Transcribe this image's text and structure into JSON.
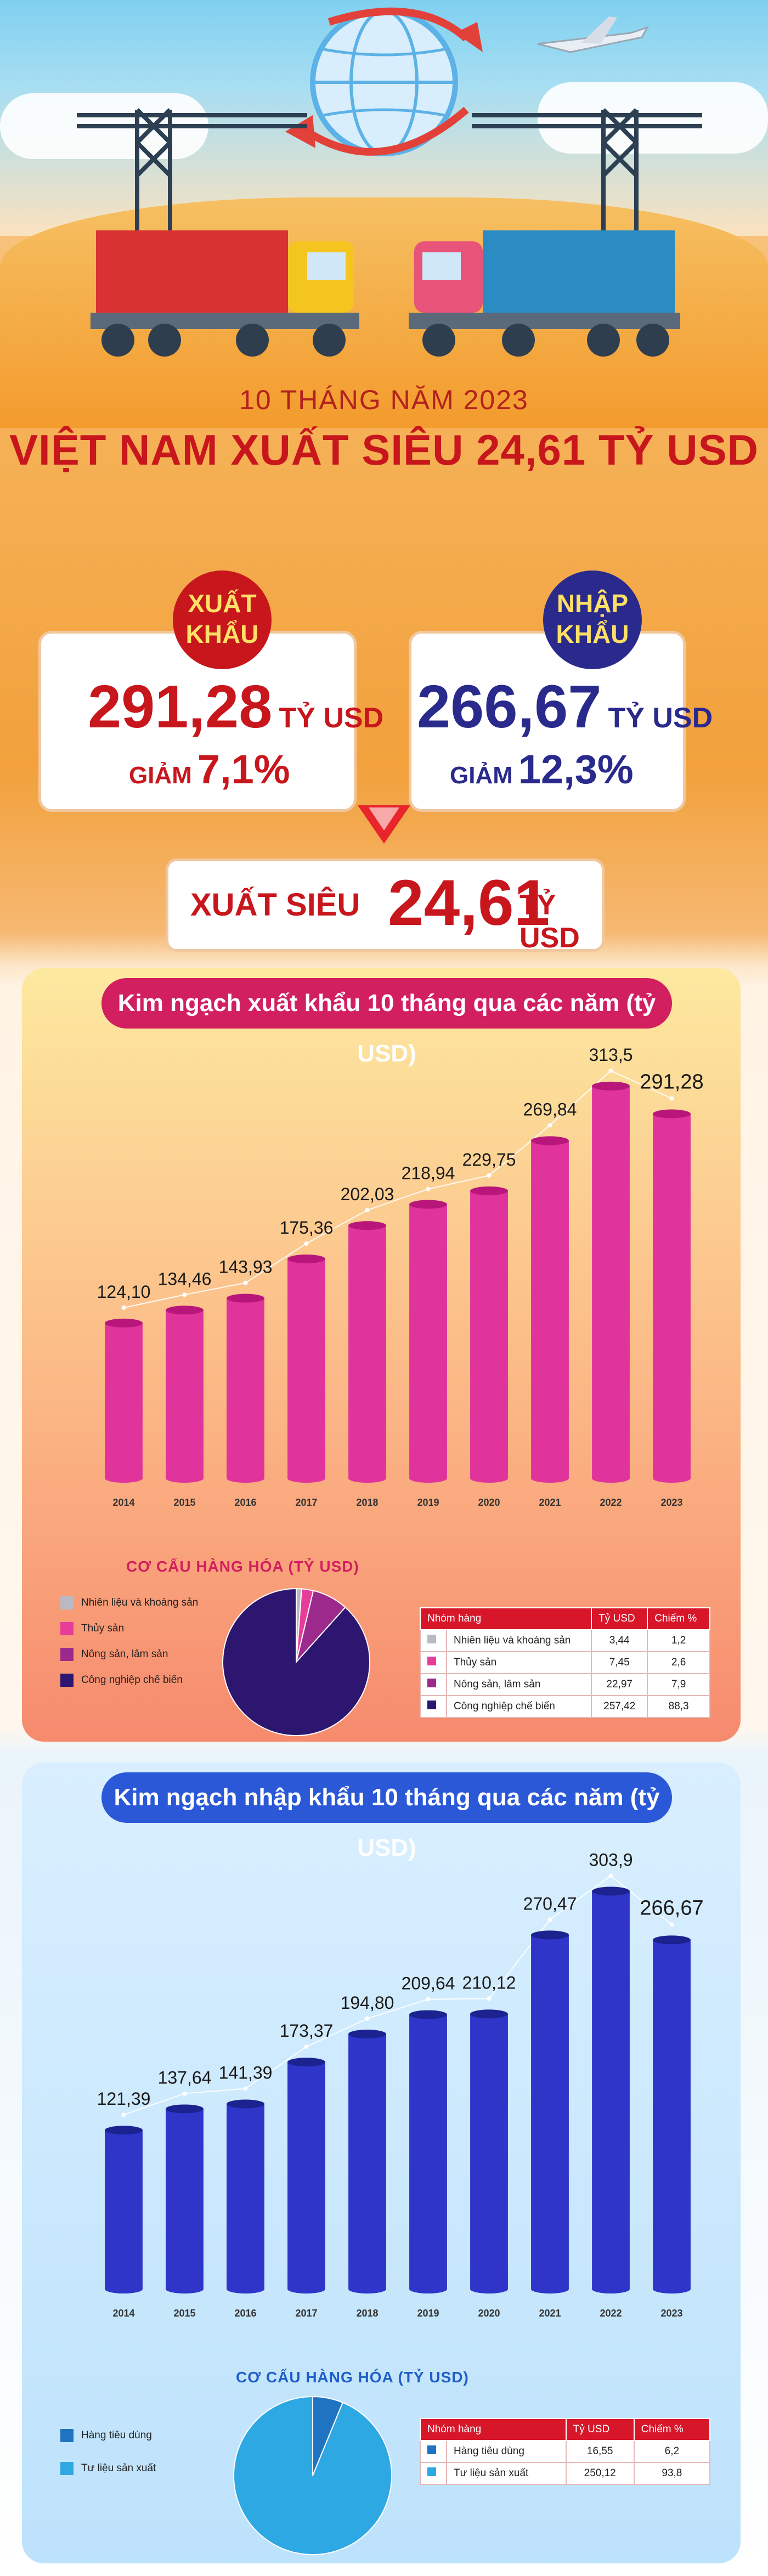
{
  "header": {
    "subtitle": "10 THÁNG NĂM 2023",
    "title": "VIỆT NAM XUẤT SIÊU 24,61 TỶ USD"
  },
  "export_summary": {
    "badge_line1": "XUẤT",
    "badge_line2": "KHẨU",
    "value": "291,28",
    "unit": "TỶ USD",
    "change_label": "GIẢM",
    "change_value": "7,1%"
  },
  "import_summary": {
    "badge_line1": "NHẬP",
    "badge_line2": "KHẨU",
    "value": "266,67",
    "unit": "TỶ USD",
    "change_label": "GIẢM",
    "change_value": "12,3%"
  },
  "surplus": {
    "label": "XUẤT SIÊU",
    "value": "24,61",
    "unit": "TỶ USD"
  },
  "colors": {
    "red": "#c8161d",
    "navy": "#2a2a8c",
    "export_bar": "#e0339b",
    "import_bar": "#2e35c8"
  },
  "chart_data": [
    {
      "type": "bar",
      "title": "Kim ngạch xuất khẩu 10 tháng qua các năm (tỷ USD)",
      "categories": [
        "2014",
        "2015",
        "2016",
        "2017",
        "2018",
        "2019",
        "2020",
        "2021",
        "2022",
        "2023"
      ],
      "values": [
        124.1,
        134.46,
        143.93,
        175.36,
        202.03,
        218.94,
        229.75,
        269.84,
        313.5,
        291.28
      ],
      "value_labels": [
        "124,10",
        "134,46",
        "143,93",
        "175,36",
        "202,03",
        "218,94",
        "229,75",
        "269,84",
        "313,5",
        "291,28"
      ],
      "ylim": [
        0,
        320
      ],
      "grid": false
    },
    {
      "type": "bar",
      "title": "Kim ngạch nhập khẩu 10 tháng qua các năm (tỷ USD)",
      "categories": [
        "2014",
        "2015",
        "2016",
        "2017",
        "2018",
        "2019",
        "2020",
        "2021",
        "2022",
        "2023"
      ],
      "values": [
        121.39,
        137.64,
        141.39,
        173.37,
        194.8,
        209.64,
        210.12,
        270.47,
        303.9,
        266.67
      ],
      "value_labels": [
        "121,39",
        "137,64",
        "141,39",
        "173,37",
        "194,80",
        "209,64",
        "210,12",
        "270,47",
        "303,9",
        "266,67"
      ],
      "ylim": [
        0,
        310
      ],
      "grid": false
    },
    {
      "type": "pie",
      "title": "CƠ CẤU HÀNG HÓA (TỶ USD)",
      "labels": [
        "Nhiên liệu và khoáng sản",
        "Thủy sản",
        "Nông sản, lâm sản",
        "Công nghiệp chế biến"
      ],
      "values": [
        3.44,
        7.45,
        22.97,
        257.42
      ],
      "colors": [
        "#b9b9c4",
        "#e63c9a",
        "#9c2a8c",
        "#2c1670"
      ]
    },
    {
      "type": "pie",
      "title": "CƠ CẤU HÀNG HÓA (TỶ USD)",
      "labels": [
        "Hàng tiêu dùng",
        "Tư liệu sản xuất"
      ],
      "values": [
        16.55,
        250.12
      ],
      "colors": [
        "#1f73c1",
        "#2ea8e3"
      ]
    }
  ],
  "export_structure": {
    "heading": "CƠ CẤU HÀNG HÓA (TỶ USD)",
    "table_headers": [
      "Nhóm hàng",
      "Tỷ USD",
      "Chiếm %"
    ],
    "rows": [
      {
        "name": "Nhiên liệu và khoáng sản",
        "value": "3,44",
        "share": "1,2",
        "color": "#b9b9c4"
      },
      {
        "name": "Thủy sản",
        "value": "7,45",
        "share": "2,6",
        "color": "#e63c9a"
      },
      {
        "name": "Nông sản, lâm sản",
        "value": "22,97",
        "share": "7,9",
        "color": "#9c2a8c"
      },
      {
        "name": "Công nghiệp chế biến",
        "value": "257,42",
        "share": "88,3",
        "color": "#2c1670"
      }
    ]
  },
  "import_structure": {
    "heading": "CƠ CẤU HÀNG HÓA (TỶ USD)",
    "table_headers": [
      "Nhóm hàng",
      "Tỷ USD",
      "Chiếm %"
    ],
    "rows": [
      {
        "name": "Hàng tiêu dùng",
        "value": "16,55",
        "share": "6,2",
        "color": "#1f73c1"
      },
      {
        "name": "Tư liệu sản xuất",
        "value": "250,12",
        "share": "93,8",
        "color": "#2ea8e3"
      }
    ]
  }
}
